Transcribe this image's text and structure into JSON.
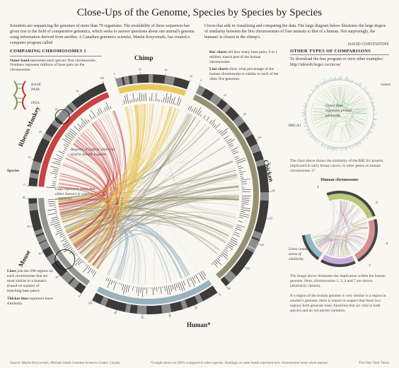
{
  "title": "Close-Ups of the Genome, Species by Species by Species",
  "intro_left": "Scientists are sequencing the genomes of more than 70 organisms. The availability of these sequences has given rise to the field of comparative genomics, which seeks to answer questions about one animal's genome using information derived from another. A Canadian genomics scientist, Martin Krzywinski, has created a computer program called",
  "intro_right": "Circos that aids in visualizing and comparing the data. The large diagram below illustrates the large degree of similarity between the first chromosomes of four animals to that of a human. Not surprisingly, the humans' is closest to the chimp's.",
  "byline": "DAVID CONSTANTINE",
  "comparing_heading": "COMPARING CHROMOSOMES 1",
  "outer_band_lead": "Outer band",
  "outer_band_text": " represents each species' first chromosome. Numbers represent millions of base pairs on the chromosome.",
  "base_pair_label": "BASE PAIR",
  "dna_label": "DNA",
  "species_pointer": "Species",
  "regions_note": "Regions of highest similarity tend to bundle together.",
  "gaps_note": "Gaps represent areas that either haven't or can't be sequenced",
  "lines_lead": "Lines",
  "lines_text": " join the 200 regions on each chromosome that are most similar to a human's (based on number of matching base pairs).",
  "thicker_lead": "Thicker lines",
  "thicker_text": " represent more similarity.",
  "species": {
    "chimp": "Chimp",
    "chicken": "Chicken",
    "human": "Human*",
    "mouse": "Mouse",
    "rhesus": "Rhesus Monkey"
  },
  "species_colors": {
    "chimp": "#8a8464",
    "chicken": "#8fa9b8",
    "human": "#888888",
    "mouse": "#c22f2e",
    "rhesus": "#e8c44a",
    "outer": "#3b3b3b"
  },
  "other_heading": "OTHER TYPES OF COMPARISONS",
  "download_text": "To download the free program or view other examples: http://mkweb.bcgsc.ca/circos/",
  "bar_lead": "Bar charts",
  "bar_text": " tell how many base pairs, 0 to 1 million, match part of the human chromosome.",
  "line_lead": "Line charts",
  "line_text": " show what percentage of the human chromosome is similar to each of the other five genomes.",
  "mini1_genes": "Genes",
  "mini1_brca": "BRCA1",
  "mini1_green": "Green lines represent protein similarity.",
  "mini1_caption": "The chart above shows the similarity of the BRCA1 protein, implicated in early breast cancer, to other genes on human chromosome 17.",
  "mini2_heading": "Human chromosome",
  "mini2_lines": "Lines connect areas of similarity.",
  "mini2_caption": "The image above illustrates the duplication within the human genome. Here, chromosomes 1, 2, 4 and 7 are shown (arbitrarily chosen).",
  "final_note": "If a region of the human genome is very similar to a region in another's genome, there is reason to suspect that these two regions both generate basic functions that are vital to both species and do not permit variation.",
  "source": "Source: Martin Krzywinski, Michael Smith Genome Sciences Center, Canada",
  "footnote": "*Length shown at 200% compared to other species. Shadings on outer bands represent how chromosome looks when stained.",
  "publisher": "The New York Times",
  "background_color": "#f9f7f2"
}
